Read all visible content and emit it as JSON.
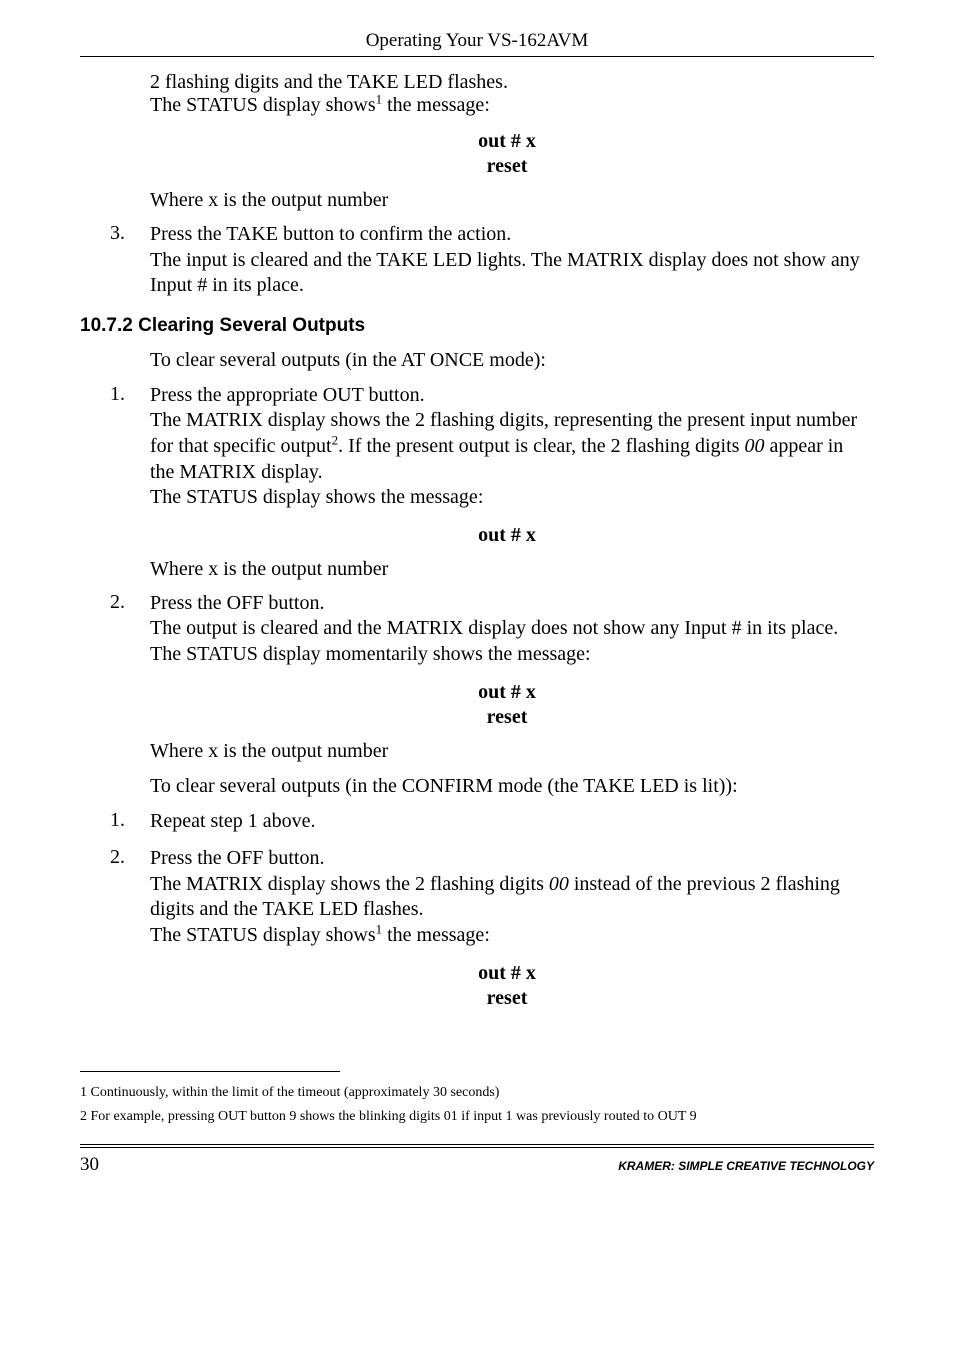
{
  "runningHead": "Operating Your VS-162AVM",
  "continued": {
    "line1": "2 flashing digits and the TAKE LED flashes.",
    "line2_pre": "The STATUS display shows",
    "line2_sup": "1",
    "line2_post": " the message:"
  },
  "block1": {
    "l1": "out # x",
    "l2": "reset"
  },
  "where": "Where x is the output number",
  "step3": {
    "num": "3.",
    "p1": "Press the TAKE button to confirm the action.",
    "p2": "The input is cleared and the TAKE LED lights. The MATRIX display does not show any Input # in its place."
  },
  "h3": "10.7.2 Clearing Several Outputs",
  "intro1": "To clear several outputs (in the AT ONCE mode):",
  "stepA1": {
    "num": "1.",
    "p1": "Press the appropriate OUT button.",
    "p2_pre": "The MATRIX display shows the 2 flashing digits, representing the present input number for that specific output",
    "p2_sup": "2",
    "p2_post": ". If the present output is clear, the 2 flashing digits ",
    "p2_em": "00",
    "p2_tail": " appear in the MATRIX display.",
    "p3": "The STATUS display shows the message:"
  },
  "block2": {
    "l1": "out # x"
  },
  "stepA2": {
    "num": "2.",
    "p1": "Press the OFF button.",
    "p2": "The output is cleared and the MATRIX display does not show any Input # in its place.",
    "p3": "The STATUS display momentarily shows the message:"
  },
  "block3": {
    "l1": "out # x",
    "l2": "reset"
  },
  "intro2": "To clear several outputs (in the CONFIRM mode (the TAKE LED is lit)):",
  "stepB1": {
    "num": "1.",
    "p1": "Repeat step 1 above."
  },
  "stepB2": {
    "num": "2.",
    "p1": "Press the OFF button.",
    "p2_pre": "The MATRIX display shows the 2 flashing digits ",
    "p2_em": "00",
    "p2_post": " instead of the previous 2 flashing digits and the TAKE LED flashes.",
    "p3_pre": "The STATUS display shows",
    "p3_sup": "1",
    "p3_post": " the message:"
  },
  "block4": {
    "l1": "out # x",
    "l2": "reset"
  },
  "footnotes": {
    "f1": "1 Continuously, within the limit of the timeout (approximately 30 seconds)",
    "f2": "2 For example, pressing OUT button 9 shows the blinking digits 01 if input 1 was previously routed to OUT 9"
  },
  "footer": {
    "page": "30",
    "brand": "KRAMER:  SIMPLE CREATIVE TECHNOLOGY"
  }
}
